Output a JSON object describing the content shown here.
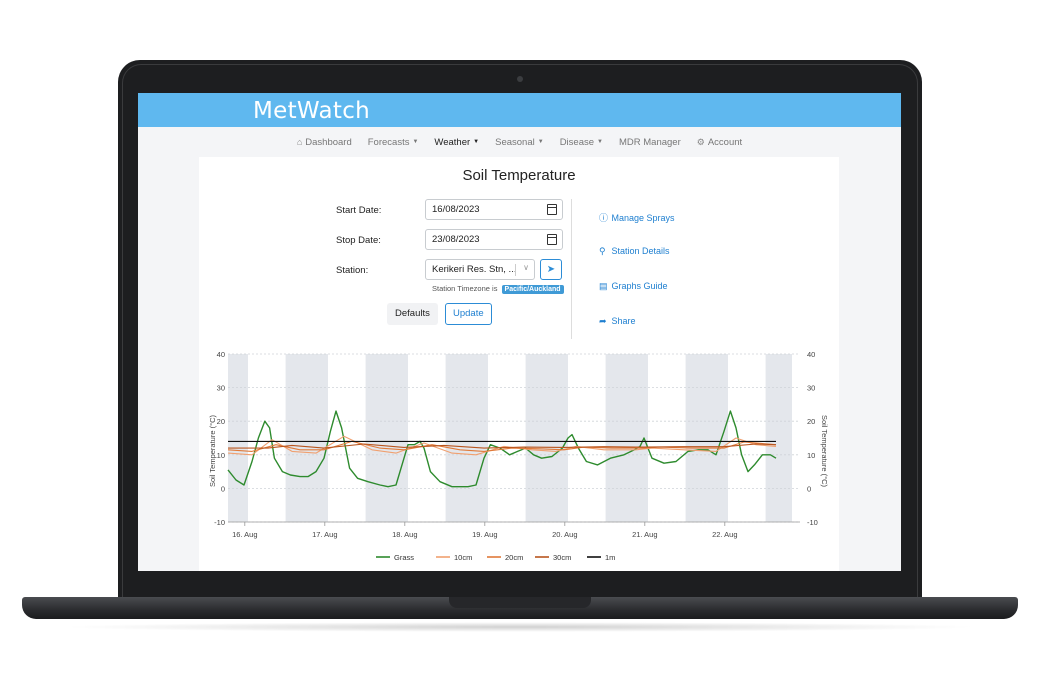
{
  "app": {
    "brand": "MetWatch"
  },
  "nav": {
    "items": [
      {
        "label": "Dashboard",
        "icon": "home-icon",
        "caret": false
      },
      {
        "label": "Forecasts",
        "icon": "",
        "caret": true
      },
      {
        "label": "Weather",
        "icon": "",
        "caret": true,
        "active": true
      },
      {
        "label": "Seasonal",
        "icon": "",
        "caret": true
      },
      {
        "label": "Disease",
        "icon": "",
        "caret": true
      },
      {
        "label": "MDR Manager",
        "icon": "",
        "caret": false
      },
      {
        "label": "Account",
        "icon": "gear-icon",
        "caret": false
      }
    ]
  },
  "page": {
    "title": "Soil Temperature"
  },
  "form": {
    "start_label": "Start Date:",
    "start_value": "16/08/2023",
    "stop_label": "Stop Date:",
    "stop_value": "23/08/2023",
    "station_label": "Station:",
    "station_value": "Kerikeri Res. Stn, ...",
    "timezone_prefix": "Station Timezone is",
    "timezone_value": "Pacific/Auckland",
    "defaults_label": "Defaults",
    "update_label": "Update"
  },
  "side_links": [
    {
      "label": "Manage Sprays",
      "icon": "info-circle-icon"
    },
    {
      "label": "Station Details",
      "icon": "search-icon"
    },
    {
      "label": "Graphs Guide",
      "icon": "chart-icon"
    },
    {
      "label": "Share",
      "icon": "share-icon"
    }
  ],
  "chart_data": {
    "type": "line",
    "ylabel": "Soil Temperature (°C)",
    "ylabel_right": "Soil Temperature (°C)",
    "ylim": [
      -10,
      40
    ],
    "yticks": [
      -10,
      0,
      10,
      20,
      30,
      40
    ],
    "xlim": [
      0,
      7.15
    ],
    "x_unit": "days since 15. Aug 19:00",
    "xticks": [
      {
        "x": 0.21,
        "label": "16. Aug"
      },
      {
        "x": 1.21,
        "label": "17. Aug"
      },
      {
        "x": 2.21,
        "label": "18. Aug"
      },
      {
        "x": 3.21,
        "label": "19. Aug"
      },
      {
        "x": 4.21,
        "label": "20. Aug"
      },
      {
        "x": 5.21,
        "label": "21. Aug"
      },
      {
        "x": 6.21,
        "label": "22. Aug"
      }
    ],
    "night_bands": [
      [
        0.0,
        0.25
      ],
      [
        0.72,
        1.25
      ],
      [
        1.72,
        2.25
      ],
      [
        2.72,
        3.25
      ],
      [
        3.72,
        4.25
      ],
      [
        4.72,
        5.25
      ],
      [
        5.72,
        6.25
      ],
      [
        6.72,
        7.05
      ]
    ],
    "grid": true,
    "legend_position": "bottom-center",
    "series": [
      {
        "name": "Grass",
        "color": "#2e8b2e",
        "points": [
          [
            0,
            5.5
          ],
          [
            0.1,
            2.5
          ],
          [
            0.2,
            1
          ],
          [
            0.3,
            8
          ],
          [
            0.38,
            15
          ],
          [
            0.46,
            20
          ],
          [
            0.52,
            18
          ],
          [
            0.58,
            9
          ],
          [
            0.68,
            5
          ],
          [
            0.78,
            4
          ],
          [
            0.9,
            3.5
          ],
          [
            1.0,
            3.5
          ],
          [
            1.1,
            5
          ],
          [
            1.2,
            9
          ],
          [
            1.28,
            17
          ],
          [
            1.35,
            23
          ],
          [
            1.42,
            18
          ],
          [
            1.52,
            6
          ],
          [
            1.62,
            3
          ],
          [
            1.75,
            2
          ],
          [
            1.9,
            1
          ],
          [
            2.0,
            0.5
          ],
          [
            2.1,
            1
          ],
          [
            2.2,
            9
          ],
          [
            2.25,
            13
          ],
          [
            2.33,
            13
          ],
          [
            2.4,
            14
          ],
          [
            2.45,
            12
          ],
          [
            2.53,
            5
          ],
          [
            2.65,
            2
          ],
          [
            2.8,
            0.5
          ],
          [
            3.0,
            0.5
          ],
          [
            3.1,
            1
          ],
          [
            3.2,
            9
          ],
          [
            3.28,
            13
          ],
          [
            3.4,
            12
          ],
          [
            3.52,
            10
          ],
          [
            3.62,
            11
          ],
          [
            3.72,
            12
          ],
          [
            3.82,
            10
          ],
          [
            3.92,
            9
          ],
          [
            4.05,
            9.5
          ],
          [
            4.18,
            12
          ],
          [
            4.25,
            15
          ],
          [
            4.3,
            16
          ],
          [
            4.38,
            12
          ],
          [
            4.48,
            8
          ],
          [
            4.62,
            7
          ],
          [
            4.78,
            9
          ],
          [
            4.95,
            10
          ],
          [
            5.08,
            11.5
          ],
          [
            5.15,
            12.5
          ],
          [
            5.2,
            15
          ],
          [
            5.25,
            12
          ],
          [
            5.3,
            9
          ],
          [
            5.45,
            7.5
          ],
          [
            5.6,
            8
          ],
          [
            5.75,
            11
          ],
          [
            5.88,
            11.5
          ],
          [
            6.0,
            11.5
          ],
          [
            6.1,
            10
          ],
          [
            6.2,
            17
          ],
          [
            6.28,
            23
          ],
          [
            6.35,
            18
          ],
          [
            6.42,
            10
          ],
          [
            6.5,
            5
          ],
          [
            6.58,
            7
          ],
          [
            6.68,
            10
          ],
          [
            6.78,
            10
          ],
          [
            6.85,
            9
          ]
        ]
      },
      {
        "name": "10cm",
        "color": "#f0a070",
        "points": [
          [
            0,
            10.5
          ],
          [
            0.3,
            10
          ],
          [
            0.55,
            14.5
          ],
          [
            0.8,
            11
          ],
          [
            1.1,
            10.5
          ],
          [
            1.45,
            15.5
          ],
          [
            1.8,
            11.5
          ],
          [
            2.1,
            10.5
          ],
          [
            2.45,
            13.5
          ],
          [
            2.8,
            10.5
          ],
          [
            3.1,
            10
          ],
          [
            3.45,
            12.5
          ],
          [
            3.8,
            11.5
          ],
          [
            4.1,
            11
          ],
          [
            4.35,
            12.5
          ],
          [
            4.7,
            11.5
          ],
          [
            5.1,
            11.5
          ],
          [
            5.3,
            12
          ],
          [
            5.7,
            11.5
          ],
          [
            6.1,
            11
          ],
          [
            6.35,
            15
          ],
          [
            6.6,
            13
          ],
          [
            6.85,
            12.5
          ]
        ]
      },
      {
        "name": "20cm",
        "color": "#e07a3a",
        "points": [
          [
            0,
            11.5
          ],
          [
            0.3,
            11
          ],
          [
            0.6,
            13
          ],
          [
            0.9,
            11.5
          ],
          [
            1.2,
            11.5
          ],
          [
            1.55,
            14
          ],
          [
            1.9,
            12
          ],
          [
            2.2,
            11.5
          ],
          [
            2.55,
            13
          ],
          [
            2.9,
            11.5
          ],
          [
            3.2,
            11
          ],
          [
            3.55,
            12
          ],
          [
            3.9,
            11.8
          ],
          [
            4.2,
            11.5
          ],
          [
            4.45,
            12.3
          ],
          [
            4.8,
            12
          ],
          [
            5.2,
            12
          ],
          [
            5.4,
            12.3
          ],
          [
            5.8,
            12
          ],
          [
            6.2,
            12
          ],
          [
            6.45,
            13.8
          ],
          [
            6.85,
            13
          ]
        ]
      },
      {
        "name": "30cm",
        "color": "#b8551e",
        "points": [
          [
            0,
            12
          ],
          [
            0.5,
            12
          ],
          [
            0.8,
            12.8
          ],
          [
            1.2,
            12
          ],
          [
            1.7,
            13.2
          ],
          [
            2.2,
            12.2
          ],
          [
            2.7,
            12.8
          ],
          [
            3.2,
            12
          ],
          [
            3.7,
            12.3
          ],
          [
            4.2,
            12.2
          ],
          [
            4.7,
            12.4
          ],
          [
            5.2,
            12.3
          ],
          [
            5.7,
            12.4
          ],
          [
            6.2,
            12.4
          ],
          [
            6.6,
            13.2
          ],
          [
            6.85,
            13
          ]
        ]
      },
      {
        "name": "1m",
        "color": "#111111",
        "points": [
          [
            0,
            14
          ],
          [
            1,
            14
          ],
          [
            2,
            14
          ],
          [
            3,
            14
          ],
          [
            4,
            14
          ],
          [
            5,
            14
          ],
          [
            6,
            14
          ],
          [
            6.85,
            14
          ]
        ]
      }
    ]
  }
}
